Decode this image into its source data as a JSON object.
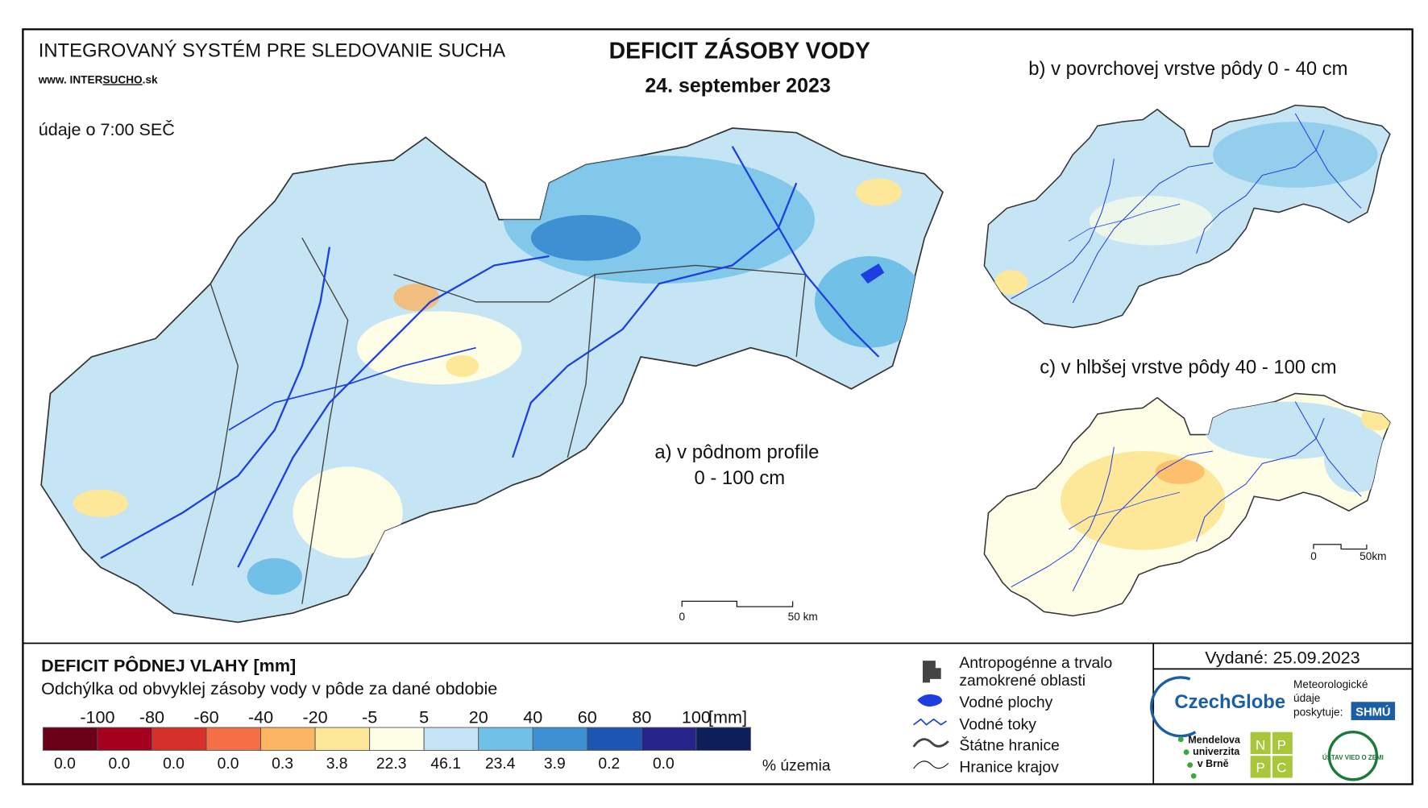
{
  "header": {
    "system": "INTEGROVANÝ SYSTÉM PRE SLEDOVANIE SUCHA",
    "url_prefix": "www. INTER",
    "url_mid": "SUCHO",
    "url_suffix": ".sk",
    "time_note": "údaje o 7:00 SEČ",
    "title": "DEFICIT ZÁSOBY VODY",
    "date": "24. september 2023"
  },
  "maps": {
    "a_label_1": "a) v pôdnom profile",
    "a_label_2": "0 - 100 cm",
    "b_label": "b) v povrchovej vrstve pôdy 0 - 40 cm",
    "c_label": "c) v hlbšej vrstve pôdy 40 - 100 cm",
    "scale_a": [
      "0",
      "50 km"
    ],
    "scale_c": [
      "0",
      "50km"
    ]
  },
  "legend": {
    "title": "DEFICIT PÔDNEJ VLAHY [mm]",
    "subtitle": "Odchýlka od obvyklej zásoby vody v pôde za dané obdobie",
    "colors": [
      "#6b0019",
      "#a5001e",
      "#d6302a",
      "#f46f45",
      "#fbb462",
      "#fde89a",
      "#fefde6",
      "#c5e5f5",
      "#71c0e8",
      "#3f8fd3",
      "#1c55b3",
      "#26238b",
      "#0c1f5a"
    ],
    "ticks": [
      "-100",
      "-80",
      "-60",
      "-40",
      "-20",
      "-5",
      "5",
      "20",
      "40",
      "60",
      "80",
      "100"
    ],
    "unit": "[mm]",
    "percentages": [
      "0.0",
      "0.0",
      "0.0",
      "0.0",
      "0.3",
      "3.8",
      "22.3",
      "46.1",
      "23.4",
      "3.9",
      "0.2",
      "0.0"
    ],
    "percent_label": "% územia"
  },
  "symbols": [
    "Antropogénne a trvalo",
    "zamokrené oblasti",
    "Vodné plochy",
    "Vodné toky",
    "Štátne hranice",
    "Hranice krajov"
  ],
  "issued": "Vydané: 25.09.2023",
  "logos": {
    "czechglobe": "CzechGlobe",
    "meteo": [
      "Meteorologické",
      "údaje",
      "poskytuje:"
    ],
    "shmu": "SHMÚ",
    "mendel": [
      "Mendelova",
      "univerzita",
      "v Brně"
    ],
    "nppc": [
      "N",
      "P",
      "P",
      "C"
    ],
    "uvz": "ÚSTAV VIED O ZEMI"
  }
}
